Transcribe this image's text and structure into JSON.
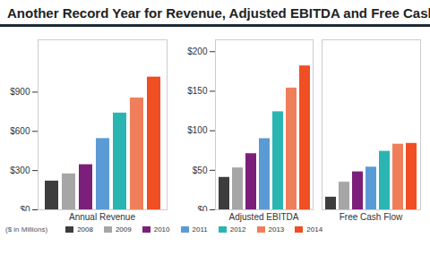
{
  "chart_data": [
    {
      "type": "bar",
      "title": "Another Record Year for Revenue, Adjusted EBITDA and Free Cash Flow",
      "annotations": [
        "($ in Millions)"
      ],
      "categories": [
        "Annual Revenue"
      ],
      "series": [
        {
          "name": "2008",
          "color": "#3d3d3d",
          "values": [
            220
          ]
        },
        {
          "name": "2009",
          "color": "#a6a6a6",
          "values": [
            275
          ]
        },
        {
          "name": "2010",
          "color": "#7b1f7a",
          "values": [
            345
          ]
        },
        {
          "name": "2011",
          "color": "#5b9bd5",
          "values": [
            545
          ]
        },
        {
          "name": "2012",
          "color": "#2bb5b2",
          "values": [
            740
          ]
        },
        {
          "name": "2013",
          "color": "#ef7f5a",
          "values": [
            855
          ]
        },
        {
          "name": "2014",
          "color": "#f04e23",
          "values": [
            1015
          ]
        }
      ],
      "ylim": [
        0,
        1300
      ],
      "yticks": [
        {
          "value": 0,
          "label": "$0"
        },
        {
          "value": 300,
          "label": "$300"
        },
        {
          "value": 600,
          "label": "$600"
        },
        {
          "value": 900,
          "label": "$900"
        }
      ]
    },
    {
      "type": "bar",
      "categories": [
        "Adjusted EBITDA",
        "Free Cash Flow"
      ],
      "series": [
        {
          "name": "2008",
          "color": "#3d3d3d",
          "values": [
            41,
            16
          ]
        },
        {
          "name": "2009",
          "color": "#a6a6a6",
          "values": [
            53,
            35
          ]
        },
        {
          "name": "2010",
          "color": "#7b1f7a",
          "values": [
            71,
            48
          ]
        },
        {
          "name": "2011",
          "color": "#5b9bd5",
          "values": [
            90,
            54
          ]
        },
        {
          "name": "2012",
          "color": "#2bb5b2",
          "values": [
            124,
            74
          ]
        },
        {
          "name": "2013",
          "color": "#ef7f5a",
          "values": [
            154,
            83
          ]
        },
        {
          "name": "2014",
          "color": "#f04e23",
          "values": [
            182,
            84
          ]
        }
      ],
      "ylim": [
        0,
        215
      ],
      "yticks": [
        {
          "value": 0,
          "label": "$0"
        },
        {
          "value": 50,
          "label": "$50"
        },
        {
          "value": 100,
          "label": "$100"
        },
        {
          "value": 150,
          "label": "$150"
        },
        {
          "value": 200,
          "label": "$200"
        }
      ],
      "legend": "bottom"
    }
  ]
}
